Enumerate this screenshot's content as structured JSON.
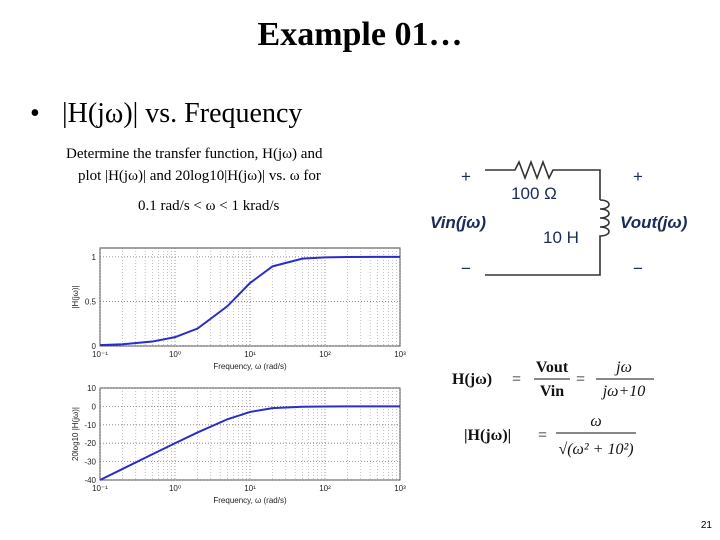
{
  "header": {
    "title": "Example 01…"
  },
  "bullet": "|H(jω)| vs. Frequency",
  "problem": {
    "lines": [
      "Determine the transfer function, H(jω) and",
      "plot |H(jω)| and 20log10|H(jω)| vs. ω for",
      "0.1 rad/s < ω < 1 krad/s"
    ]
  },
  "circuit": {
    "plus_in": "+",
    "resistor": "100 Ω",
    "plus_out": "+",
    "vin": "Vin(jω)",
    "inductor": "10 H",
    "vout": "Vout(jω)",
    "minus_in": "−",
    "minus_out": "−"
  },
  "equations": {
    "first": [
      "H(jω)",
      "=",
      "Vout",
      "Vin",
      "=",
      "jω",
      "jω+10"
    ],
    "second": [
      "|H(jω)|",
      "=",
      "ω",
      "√(ω² + 10²)"
    ]
  },
  "page_number": "21",
  "chart_data": [
    {
      "type": "line",
      "xlabel": "Frequency, ω (rad/s)",
      "ylabel": "|H(jω)|",
      "log_x": true,
      "grid": true,
      "minor_grid": true,
      "xlim": [
        0.1,
        1000
      ],
      "xticks": [
        {
          "value": 0.1,
          "label": "10⁻¹"
        },
        {
          "value": 1,
          "label": "10⁰"
        },
        {
          "value": 10,
          "label": "10¹"
        },
        {
          "value": 100,
          "label": "10²"
        },
        {
          "value": 1000,
          "label": "10³"
        }
      ],
      "ylim": [
        0,
        1.1
      ],
      "yticks": [
        0,
        0.5,
        1
      ],
      "x": [
        0.1,
        0.2,
        0.5,
        1,
        2,
        5,
        10,
        20,
        50,
        100,
        200,
        500,
        1000
      ],
      "series": [
        {
          "color": "#2c2cc8",
          "values": [
            0.01,
            0.02,
            0.05,
            0.0995,
            0.196,
            0.447,
            0.707,
            0.894,
            0.981,
            0.995,
            0.999,
            1,
            1
          ]
        }
      ]
    },
    {
      "type": "line",
      "xlabel": "Frequency, ω (rad/s)",
      "ylabel": "20log10 |H(jω)|",
      "log_x": true,
      "grid": true,
      "minor_grid": true,
      "xlim": [
        0.1,
        1000
      ],
      "xticks": [
        {
          "value": 0.1,
          "label": "10⁻¹"
        },
        {
          "value": 1,
          "label": "10⁰"
        },
        {
          "value": 10,
          "label": "10¹"
        },
        {
          "value": 100,
          "label": "10²"
        },
        {
          "value": 1000,
          "label": "10³"
        }
      ],
      "ylim": [
        -40,
        10
      ],
      "yticks": [
        -40,
        -30,
        -20,
        -10,
        0,
        10
      ],
      "x": [
        0.1,
        0.2,
        0.5,
        1,
        2,
        5,
        10,
        20,
        50,
        100,
        200,
        500,
        1000
      ],
      "series": [
        {
          "color": "#2c2cc8",
          "values": [
            -40,
            -34,
            -26,
            -20.04,
            -14.15,
            -6.99,
            -3.01,
            -0.97,
            -0.17,
            -0.04,
            -0.01,
            0,
            0
          ]
        }
      ]
    }
  ]
}
